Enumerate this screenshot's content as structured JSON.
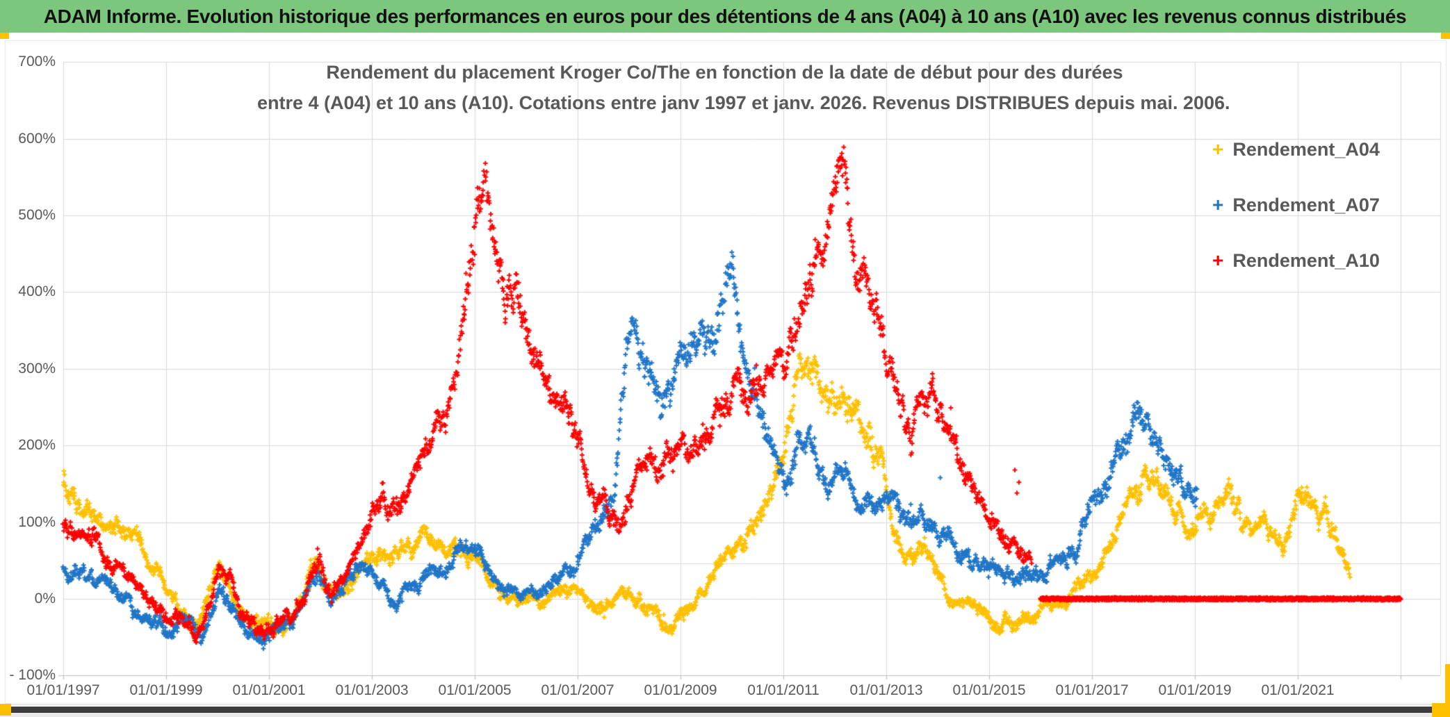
{
  "header": {
    "title": "ADAM Informe. Evolution historique des performances en euros pour des détentions de 4 ans (A04) à 10 ans (A10) avec les revenus connus distribués"
  },
  "chart": {
    "title_line1": "Rendement du placement Kroger Co/The en fonction de la date de début pour des durées",
    "title_line2": "entre 4 (A04) et 10 ans (A10). Cotations entre janv 1997 et janv. 2026. Revenus DISTRIBUES depuis mai. 2006.",
    "legend": [
      {
        "label": "Rendement_A04",
        "marker": "+",
        "color": "#FFC000"
      },
      {
        "label": "Rendement_A07",
        "marker": "+",
        "color": "#2176C7"
      },
      {
        "label": "Rendement_A10",
        "marker": "+",
        "color": "#FF0000"
      }
    ]
  },
  "colors": {
    "header_bg": "#7CC67D",
    "accent_orange": "#FFC000",
    "text_gray": "#595959",
    "gridline": "#D9D9D9",
    "axis_line": "#BFBFBF",
    "bottom_bar": "#3C3C3C"
  },
  "chart_data": {
    "type": "scatter",
    "x_axis": {
      "labels": [
        "01/01/1997",
        "01/01/1999",
        "01/01/2001",
        "01/01/2003",
        "01/01/2005",
        "01/01/2007",
        "01/01/2009",
        "01/01/2011",
        "01/01/2013",
        "01/01/2015",
        "01/01/2017",
        "01/01/2019",
        "01/01/2021"
      ],
      "tick_years": [
        1997,
        1999,
        2001,
        2003,
        2005,
        2007,
        2009,
        2011,
        2013,
        2015,
        2017,
        2019,
        2021
      ],
      "min_year": 1997,
      "max_year": 2023.8,
      "gridline_step_years": 2,
      "last_gridline_year": 2023
    },
    "y_axis": {
      "labels": [
        "700%",
        "600%",
        "500%",
        "400%",
        "300%",
        "200%",
        "100%",
        "0%",
        "- 100%"
      ],
      "max": 700,
      "min": -100,
      "step": 100,
      "unit": "%"
    },
    "series": [
      {
        "name": "Rendement_A04",
        "color": "#FFC000",
        "keypoints": [
          [
            1997.0,
            150
          ],
          [
            1997.3,
            128
          ],
          [
            1997.6,
            118
          ],
          [
            1998.0,
            98
          ],
          [
            1998.4,
            78
          ],
          [
            1998.7,
            45
          ],
          [
            1999.0,
            8
          ],
          [
            1999.3,
            -25
          ],
          [
            1999.6,
            -33
          ],
          [
            1999.85,
            10
          ],
          [
            2000.05,
            40
          ],
          [
            2000.3,
            -12
          ],
          [
            2000.6,
            -35
          ],
          [
            2001.0,
            -32
          ],
          [
            2001.3,
            -38
          ],
          [
            2001.6,
            -12
          ],
          [
            2001.9,
            48
          ],
          [
            2002.1,
            18
          ],
          [
            2002.35,
            5
          ],
          [
            2002.6,
            35
          ],
          [
            2002.9,
            55
          ],
          [
            2003.1,
            48
          ],
          [
            2003.4,
            52
          ],
          [
            2003.7,
            62
          ],
          [
            2004.1,
            78
          ],
          [
            2004.4,
            62
          ],
          [
            2004.7,
            70
          ],
          [
            2004.95,
            55
          ],
          [
            2005.2,
            32
          ],
          [
            2005.5,
            8
          ],
          [
            2005.8,
            0
          ],
          [
            2006.1,
            -5
          ],
          [
            2006.4,
            6
          ],
          [
            2006.7,
            16
          ],
          [
            2007.0,
            4
          ],
          [
            2007.3,
            -8
          ],
          [
            2007.6,
            -4
          ],
          [
            2007.9,
            2
          ],
          [
            2008.2,
            -5
          ],
          [
            2008.45,
            -20
          ],
          [
            2008.7,
            -30
          ],
          [
            2009.0,
            -18
          ],
          [
            2009.3,
            0
          ],
          [
            2009.6,
            25
          ],
          [
            2009.9,
            55
          ],
          [
            2010.15,
            80
          ],
          [
            2010.4,
            100
          ],
          [
            2010.65,
            130
          ],
          [
            2010.9,
            165
          ],
          [
            2011.1,
            235
          ],
          [
            2011.3,
            310
          ],
          [
            2011.45,
            305
          ],
          [
            2011.6,
            280
          ],
          [
            2011.8,
            255
          ],
          [
            2012.0,
            245
          ],
          [
            2012.15,
            255
          ],
          [
            2012.35,
            240
          ],
          [
            2012.55,
            225
          ],
          [
            2012.75,
            190
          ],
          [
            2012.95,
            155
          ],
          [
            2013.15,
            90
          ],
          [
            2013.35,
            50
          ],
          [
            2013.55,
            58
          ],
          [
            2013.75,
            68
          ],
          [
            2013.95,
            45
          ],
          [
            2014.2,
            20
          ],
          [
            2014.5,
            -5
          ],
          [
            2014.8,
            -18
          ],
          [
            2015.0,
            -30
          ],
          [
            2015.2,
            -42
          ],
          [
            2015.45,
            -32
          ],
          [
            2015.7,
            -26
          ],
          [
            2015.95,
            -22
          ],
          [
            2016.2,
            -12
          ],
          [
            2016.5,
            5
          ],
          [
            2016.8,
            22
          ],
          [
            2017.1,
            40
          ],
          [
            2017.4,
            75
          ],
          [
            2017.7,
            115
          ],
          [
            2017.95,
            150
          ],
          [
            2018.15,
            178
          ],
          [
            2018.35,
            150
          ],
          [
            2018.55,
            120
          ],
          [
            2018.75,
            95
          ],
          [
            2018.95,
            82
          ],
          [
            2019.1,
            95
          ],
          [
            2019.35,
            120
          ],
          [
            2019.6,
            145
          ],
          [
            2019.85,
            112
          ],
          [
            2020.05,
            78
          ],
          [
            2020.25,
            80
          ],
          [
            2020.4,
            110
          ],
          [
            2020.55,
            85
          ],
          [
            2020.7,
            72
          ],
          [
            2020.85,
            95
          ],
          [
            2021.0,
            132
          ],
          [
            2021.15,
            142
          ],
          [
            2021.35,
            120
          ],
          [
            2021.5,
            116
          ],
          [
            2021.65,
            95
          ],
          [
            2021.8,
            70
          ],
          [
            2021.95,
            52
          ],
          [
            2022.02,
            45
          ]
        ],
        "extra_points": []
      },
      {
        "name": "Rendement_A07",
        "color": "#2176C7",
        "keypoints": [
          [
            1997.0,
            48
          ],
          [
            1997.3,
            30
          ],
          [
            1997.6,
            24
          ],
          [
            1998.0,
            6
          ],
          [
            1998.3,
            -12
          ],
          [
            1998.6,
            -28
          ],
          [
            1999.0,
            -45
          ],
          [
            1999.35,
            -40
          ],
          [
            1999.7,
            -43
          ],
          [
            2000.05,
            15
          ],
          [
            2000.3,
            -15
          ],
          [
            2000.6,
            -40
          ],
          [
            2001.0,
            -40
          ],
          [
            2001.35,
            -35
          ],
          [
            2001.7,
            5
          ],
          [
            2001.95,
            28
          ],
          [
            2002.2,
            4
          ],
          [
            2002.5,
            22
          ],
          [
            2002.8,
            40
          ],
          [
            2003.05,
            25
          ],
          [
            2003.3,
            12
          ],
          [
            2003.5,
            -5
          ],
          [
            2003.75,
            15
          ],
          [
            2004.0,
            28
          ],
          [
            2004.5,
            45
          ],
          [
            2005.0,
            52
          ],
          [
            2005.5,
            25
          ],
          [
            2006.0,
            2
          ],
          [
            2006.5,
            15
          ],
          [
            2007.0,
            50
          ],
          [
            2007.4,
            85
          ],
          [
            2007.7,
            135
          ],
          [
            2007.95,
            340
          ],
          [
            2008.1,
            355
          ],
          [
            2008.3,
            300
          ],
          [
            2008.5,
            265
          ],
          [
            2008.7,
            245
          ],
          [
            2008.9,
            288
          ],
          [
            2009.1,
            325
          ],
          [
            2009.35,
            340
          ],
          [
            2009.6,
            310
          ],
          [
            2009.85,
            395
          ],
          [
            2010.0,
            410
          ],
          [
            2010.15,
            330
          ],
          [
            2010.3,
            280
          ],
          [
            2010.5,
            232
          ],
          [
            2010.7,
            208
          ],
          [
            2010.9,
            175
          ],
          [
            2011.1,
            152
          ],
          [
            2011.3,
            198
          ],
          [
            2011.5,
            212
          ],
          [
            2011.7,
            165
          ],
          [
            2011.9,
            150
          ],
          [
            2012.1,
            155
          ],
          [
            2012.4,
            122
          ],
          [
            2012.6,
            140
          ],
          [
            2012.9,
            128
          ],
          [
            2013.1,
            142
          ],
          [
            2013.4,
            118
          ],
          [
            2013.7,
            102
          ],
          [
            2014.0,
            88
          ],
          [
            2014.3,
            72
          ],
          [
            2014.6,
            55
          ],
          [
            2014.9,
            45
          ],
          [
            2015.2,
            38
          ],
          [
            2015.5,
            28
          ],
          [
            2015.8,
            35
          ],
          [
            2016.1,
            30
          ],
          [
            2016.4,
            55
          ],
          [
            2016.7,
            72
          ],
          [
            2017.0,
            135
          ],
          [
            2017.3,
            168
          ],
          [
            2017.55,
            198
          ],
          [
            2017.75,
            222
          ],
          [
            2017.95,
            235
          ],
          [
            2018.1,
            222
          ],
          [
            2018.3,
            185
          ],
          [
            2018.5,
            162
          ],
          [
            2018.7,
            150
          ],
          [
            2018.9,
            138
          ],
          [
            2019.05,
            138
          ]
        ],
        "extra_points": [
          [
            2014.05,
            158
          ]
        ]
      },
      {
        "name": "Rendement_A10",
        "color": "#FF0000",
        "keypoints": [
          [
            1997.0,
            88
          ],
          [
            1997.3,
            75
          ],
          [
            1997.6,
            84
          ],
          [
            1997.9,
            55
          ],
          [
            1998.2,
            28
          ],
          [
            1998.5,
            8
          ],
          [
            1998.8,
            -16
          ],
          [
            1999.1,
            -30
          ],
          [
            1999.4,
            -38
          ],
          [
            1999.7,
            -35
          ],
          [
            2000.0,
            42
          ],
          [
            2000.25,
            22
          ],
          [
            2000.5,
            -22
          ],
          [
            2000.8,
            -40
          ],
          [
            2001.1,
            -35
          ],
          [
            2001.4,
            -38
          ],
          [
            2001.7,
            -2
          ],
          [
            2001.95,
            52
          ],
          [
            2002.2,
            8
          ],
          [
            2002.45,
            22
          ],
          [
            2002.7,
            55
          ],
          [
            2002.95,
            100
          ],
          [
            2003.2,
            142
          ],
          [
            2003.45,
            128
          ],
          [
            2003.7,
            135
          ],
          [
            2003.95,
            158
          ],
          [
            2004.2,
            198
          ],
          [
            2004.5,
            258
          ],
          [
            2004.7,
            330
          ],
          [
            2004.9,
            430
          ],
          [
            2005.05,
            515
          ],
          [
            2005.2,
            530
          ],
          [
            2005.35,
            470
          ],
          [
            2005.5,
            415
          ],
          [
            2005.65,
            385
          ],
          [
            2005.8,
            408
          ],
          [
            2005.95,
            345
          ],
          [
            2006.15,
            328
          ],
          [
            2006.35,
            298
          ],
          [
            2006.55,
            272
          ],
          [
            2006.75,
            248
          ],
          [
            2006.95,
            225
          ],
          [
            2007.15,
            168
          ],
          [
            2007.35,
            128
          ],
          [
            2007.55,
            108
          ],
          [
            2007.75,
            88
          ],
          [
            2007.95,
            128
          ],
          [
            2008.15,
            168
          ],
          [
            2008.4,
            182
          ],
          [
            2008.65,
            172
          ],
          [
            2008.9,
            188
          ],
          [
            2009.2,
            202
          ],
          [
            2009.5,
            218
          ],
          [
            2009.8,
            258
          ],
          [
            2010.0,
            272
          ],
          [
            2010.2,
            292
          ],
          [
            2010.4,
            308
          ],
          [
            2010.6,
            285
          ],
          [
            2010.8,
            298
          ],
          [
            2011.0,
            318
          ],
          [
            2011.2,
            338
          ],
          [
            2011.4,
            378
          ],
          [
            2011.6,
            448
          ],
          [
            2011.75,
            420
          ],
          [
            2011.9,
            458
          ],
          [
            2012.0,
            515
          ],
          [
            2012.1,
            568
          ],
          [
            2012.2,
            535
          ],
          [
            2012.35,
            478
          ],
          [
            2012.5,
            448
          ],
          [
            2012.65,
            422
          ],
          [
            2012.8,
            382
          ],
          [
            2012.95,
            328
          ],
          [
            2013.1,
            288
          ],
          [
            2013.3,
            258
          ],
          [
            2013.5,
            230
          ],
          [
            2013.7,
            242
          ],
          [
            2013.9,
            262
          ],
          [
            2014.1,
            248
          ],
          [
            2014.3,
            212
          ],
          [
            2014.5,
            178
          ],
          [
            2014.7,
            148
          ],
          [
            2014.9,
            122
          ],
          [
            2015.1,
            98
          ],
          [
            2015.3,
            82
          ],
          [
            2015.5,
            68
          ],
          [
            2015.65,
            58
          ],
          [
            2015.82,
            52
          ]
        ],
        "extra_points": [
          [
            2015.5,
            168
          ],
          [
            2015.54,
            138
          ],
          [
            2015.58,
            152
          ]
        ],
        "flat_segment": {
          "from": 2016.0,
          "to": 2023.0,
          "value": 0
        }
      }
    ]
  }
}
